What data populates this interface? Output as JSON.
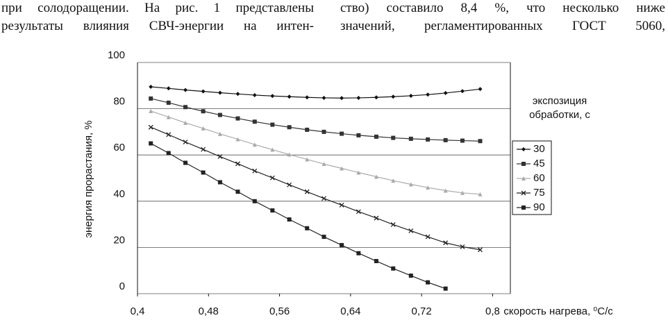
{
  "text": {
    "left": [
      "при солодоращении. На рис. 1 представлены",
      "результаты влияния СВЧ-энергии на интен-"
    ],
    "right": [
      "ство) составило 8,4 %, что несколько ниже",
      "значений, регламентированных ГОСТ 5060,"
    ]
  },
  "chart_data": {
    "type": "line",
    "y_label": "энергия прорастания, %",
    "x_label": "скорость нагрева, ⁰C/с",
    "legend_title": [
      "экспозиция",
      "обработки, с"
    ],
    "x": [
      0.415,
      0.435,
      0.454,
      0.474,
      0.493,
      0.513,
      0.532,
      0.552,
      0.571,
      0.591,
      0.61,
      0.63,
      0.649,
      0.669,
      0.688,
      0.708,
      0.727,
      0.747,
      0.766,
      0.786
    ],
    "series": [
      {
        "name": "30",
        "color": "#111",
        "marker": "diamond",
        "values": [
          89.5,
          88.8,
          88.1,
          87.5,
          86.9,
          86.4,
          85.9,
          85.5,
          85.2,
          84.9,
          84.7,
          84.6,
          84.7,
          84.9,
          85.2,
          85.6,
          86.1,
          86.8,
          87.6,
          88.5
        ]
      },
      {
        "name": "45",
        "color": "#333",
        "marker": "square",
        "values": [
          84.4,
          82.6,
          80.7,
          78.9,
          77.3,
          75.8,
          74.4,
          73.1,
          72.0,
          70.9,
          70.0,
          69.2,
          68.5,
          67.9,
          67.4,
          67.0,
          66.7,
          66.4,
          66.2,
          66.0
        ]
      },
      {
        "name": "60",
        "color": "#aaa",
        "marker": "triangle",
        "values": [
          79,
          76.4,
          73.9,
          71.5,
          69.1,
          66.8,
          64.5,
          62.3,
          60.2,
          58.1,
          56.1,
          54.2,
          52.4,
          50.6,
          48.9,
          47.3,
          45.9,
          44.6,
          43.6,
          43.0
        ]
      },
      {
        "name": "75",
        "color": "#222",
        "marker": "x",
        "values": [
          72,
          68.8,
          65.6,
          62.4,
          59.3,
          56.2,
          53.1,
          50.1,
          47.1,
          44.1,
          41.2,
          38.3,
          35.5,
          32.7,
          29.9,
          27.2,
          24.6,
          22.0,
          20.3,
          19.0
        ]
      },
      {
        "name": "90",
        "color": "#222",
        "marker": "square",
        "values": [
          65,
          60.8,
          56.6,
          52.4,
          48.2,
          44.1,
          40.0,
          36.0,
          32.1,
          28.3,
          24.6,
          21.0,
          17.5,
          14.1,
          10.9,
          7.8,
          4.9,
          2.2,
          null,
          null
        ]
      }
    ],
    "xlim": [
      0.4,
      0.82
    ],
    "ylim": [
      0,
      100
    ],
    "xticks": [
      {
        "value": 0.4,
        "label": "0,4"
      },
      {
        "value": 0.48,
        "label": "0,48"
      },
      {
        "value": 0.56,
        "label": "0,56"
      },
      {
        "value": 0.64,
        "label": "0,64"
      },
      {
        "value": 0.72,
        "label": "0,72"
      },
      {
        "value": 0.8,
        "label": "0,8"
      }
    ],
    "yticks": [
      0,
      20,
      40,
      60,
      80,
      100
    ],
    "grid": true
  }
}
